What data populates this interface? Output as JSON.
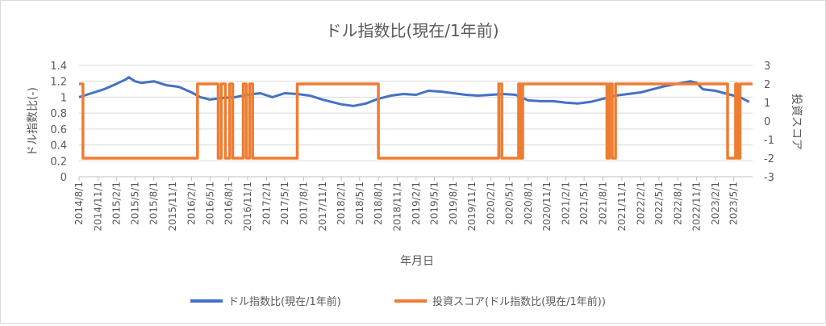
{
  "chart_data": {
    "type": "line",
    "title": "ドル指数比(現在/1年前)",
    "xlabel": "年月日",
    "ylabel_left": "ドル指数比(-)",
    "ylabel_right": "投資スコア",
    "ylim_left": [
      0,
      1.4
    ],
    "ylim_right": [
      -3,
      3
    ],
    "yticks_left": [
      "0",
      "0.2",
      "0.4",
      "0.6",
      "0.8",
      "1",
      "1.2",
      "1.4"
    ],
    "yticks_right": [
      "-3",
      "-2",
      "-1",
      "0",
      "1",
      "2",
      "3"
    ],
    "x_range": [
      "2014-08-01",
      "2023-08-01"
    ],
    "x_ticks": [
      "2014/8/1",
      "2014/11/1",
      "2015/2/1",
      "2015/5/1",
      "2015/8/1",
      "2015/11/1",
      "2016/2/1",
      "2016/5/1",
      "2016/8/1",
      "2016/11/1",
      "2017/2/1",
      "2017/5/1",
      "2017/8/1",
      "2017/11/1",
      "2018/2/1",
      "2018/5/1",
      "2018/8/1",
      "2018/11/1",
      "2019/2/1",
      "2019/5/1",
      "2019/8/1",
      "2019/11/1",
      "2020/2/1",
      "2020/5/1",
      "2020/8/1",
      "2020/11/1",
      "2021/2/1",
      "2021/5/1",
      "2021/8/1",
      "2021/11/1",
      "2022/2/1",
      "2022/5/1",
      "2022/8/1",
      "2022/11/1",
      "2023/2/1",
      "2023/5/1"
    ],
    "grid": true,
    "legend_position": "bottom",
    "series": [
      {
        "name": "ドル指数比(現在/1年前)",
        "axis": "left",
        "color": "#4472c4",
        "x": [
          "2014-08-01",
          "2014-10-01",
          "2014-12-01",
          "2015-02-01",
          "2015-03-15",
          "2015-04-01",
          "2015-05-01",
          "2015-06-01",
          "2015-08-01",
          "2015-10-01",
          "2015-12-01",
          "2016-02-01",
          "2016-03-15",
          "2016-05-01",
          "2016-07-01",
          "2016-09-01",
          "2016-11-01",
          "2017-01-01",
          "2017-03-01",
          "2017-05-01",
          "2017-07-01",
          "2017-09-01",
          "2017-11-01",
          "2018-01-01",
          "2018-02-01",
          "2018-04-01",
          "2018-06-01",
          "2018-08-01",
          "2018-10-01",
          "2018-12-01",
          "2019-02-01",
          "2019-04-01",
          "2019-06-01",
          "2019-08-01",
          "2019-10-01",
          "2019-12-01",
          "2020-02-01",
          "2020-04-01",
          "2020-06-01",
          "2020-08-01",
          "2020-10-01",
          "2020-12-01",
          "2021-02-01",
          "2021-04-01",
          "2021-06-01",
          "2021-08-01",
          "2021-10-01",
          "2021-12-01",
          "2022-02-01",
          "2022-04-01",
          "2022-06-01",
          "2022-08-01",
          "2022-10-01",
          "2022-11-01",
          "2022-12-01",
          "2023-02-01",
          "2023-04-01",
          "2023-06-01",
          "2023-07-15"
        ],
        "values": [
          1.0,
          1.05,
          1.1,
          1.17,
          1.22,
          1.25,
          1.2,
          1.18,
          1.2,
          1.15,
          1.13,
          1.06,
          1.0,
          0.97,
          0.99,
          1.0,
          1.03,
          1.05,
          1.0,
          1.05,
          1.04,
          1.02,
          0.97,
          0.93,
          0.91,
          0.89,
          0.92,
          0.98,
          1.02,
          1.04,
          1.03,
          1.08,
          1.07,
          1.05,
          1.03,
          1.02,
          1.03,
          1.04,
          1.03,
          0.96,
          0.95,
          0.95,
          0.93,
          0.92,
          0.94,
          0.98,
          1.02,
          1.04,
          1.06,
          1.1,
          1.14,
          1.17,
          1.2,
          1.18,
          1.1,
          1.08,
          1.04,
          1.0,
          0.94
        ]
      },
      {
        "name": "投資スコア(ドル指数比(現在/1年前))",
        "axis": "right",
        "color": "#ed7d31",
        "x": [
          "2014-08-01",
          "2014-08-20",
          "2014-08-20",
          "2016-03-01",
          "2016-03-01",
          "2016-06-10",
          "2016-06-10",
          "2016-06-25",
          "2016-06-25",
          "2016-07-15",
          "2016-07-15",
          "2016-08-05",
          "2016-08-05",
          "2016-08-20",
          "2016-08-20",
          "2016-10-10",
          "2016-10-10",
          "2016-10-25",
          "2016-10-25",
          "2016-11-10",
          "2016-11-10",
          "2016-11-25",
          "2016-11-25",
          "2017-07-01",
          "2017-07-01",
          "2018-08-01",
          "2018-08-01",
          "2020-03-10",
          "2020-03-10",
          "2020-03-25",
          "2020-03-25",
          "2020-06-15",
          "2020-06-15",
          "2020-06-25",
          "2020-06-25",
          "2020-07-05",
          "2020-07-05",
          "2021-08-20",
          "2021-08-20",
          "2021-09-01",
          "2021-09-01",
          "2021-09-15",
          "2021-09-15",
          "2021-10-01",
          "2021-10-01",
          "2023-04-01",
          "2023-04-01",
          "2023-05-10",
          "2023-05-10",
          "2023-05-20",
          "2023-05-20",
          "2023-06-01",
          "2023-06-01",
          "2023-08-01"
        ],
        "values": [
          2,
          2,
          -2,
          -2,
          2,
          2,
          -2,
          -2,
          2,
          2,
          -2,
          -2,
          2,
          2,
          -2,
          -2,
          2,
          2,
          -2,
          -2,
          2,
          2,
          -2,
          -2,
          2,
          2,
          -2,
          -2,
          2,
          2,
          -2,
          -2,
          2,
          2,
          -2,
          -2,
          2,
          2,
          -2,
          -2,
          2,
          2,
          -2,
          -2,
          2,
          2,
          -2,
          -2,
          2,
          2,
          -2,
          -2,
          2,
          2
        ]
      }
    ]
  }
}
